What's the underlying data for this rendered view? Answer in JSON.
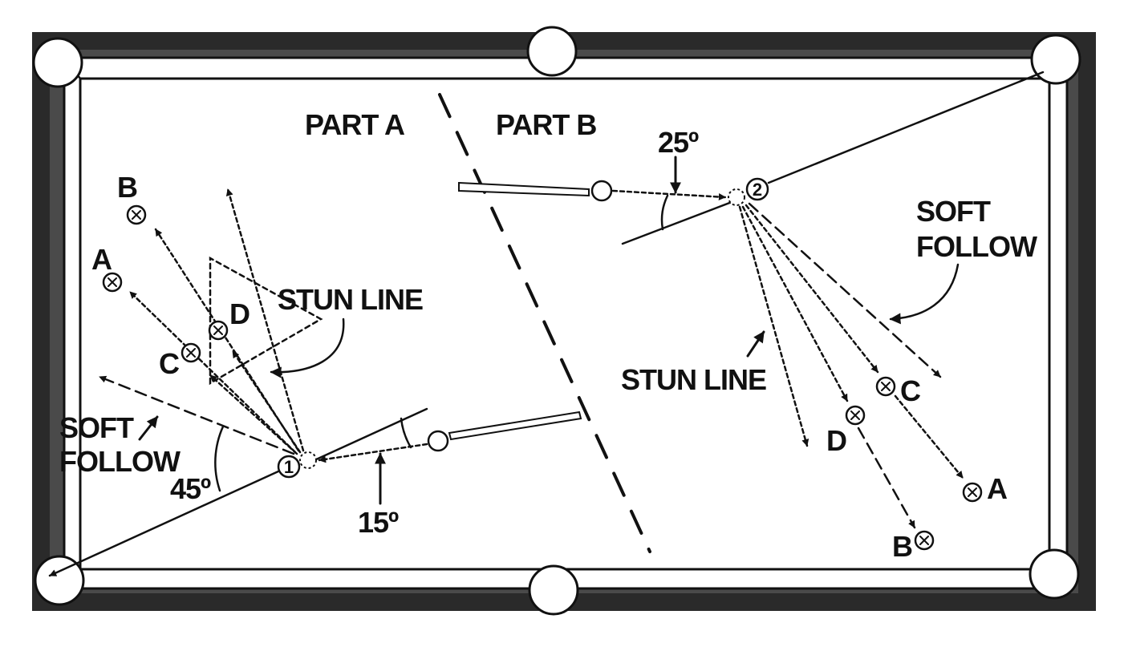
{
  "part_a": {
    "title": "PART A",
    "angle_bottom": "15º",
    "angle_left": "45º",
    "stun_line": "STUN LINE",
    "soft_follow_1": "SOFT",
    "soft_follow_2": "FOLLOW",
    "ball_number": "1",
    "points": {
      "a": "A",
      "b": "B",
      "c": "C",
      "d": "D"
    }
  },
  "part_b": {
    "title": "PART B",
    "angle_top": "25º",
    "stun_line": "STUN LINE",
    "soft_follow_1": "SOFT",
    "soft_follow_2": "FOLLOW",
    "ball_number": "2",
    "points": {
      "a": "A",
      "b": "B",
      "c": "C",
      "d": "D"
    }
  }
}
